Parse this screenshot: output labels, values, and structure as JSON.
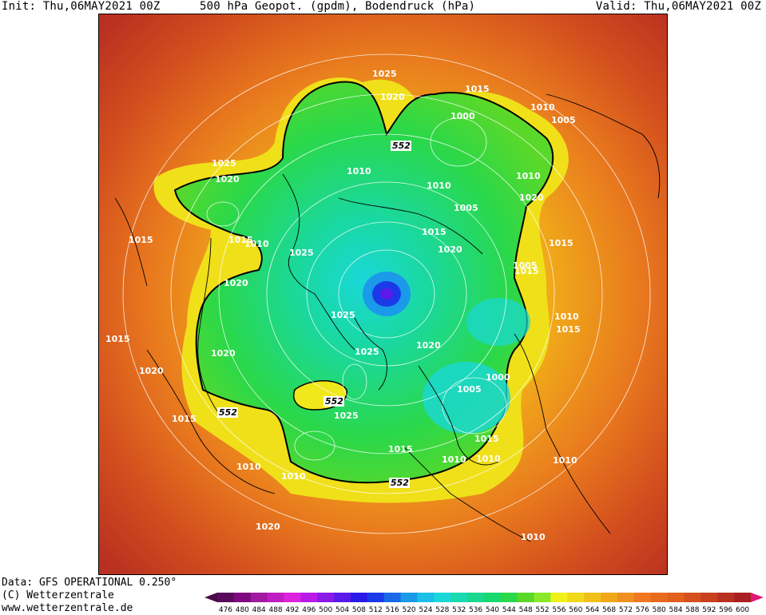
{
  "header": {
    "init": "Init: Thu,06MAY2021 00Z",
    "title": "500 hPa Geopot. (gpdm), Bodendruck (hPa)",
    "valid": "Valid: Thu,06MAY2021 00Z"
  },
  "footer": {
    "data_source": "Data: GFS OPERATIONAL 0.250°",
    "copyright": "(C) Wetterzentrale",
    "website": "www.wetterzentrale.de"
  },
  "legend": {
    "ticks": [
      "476",
      "480",
      "484",
      "488",
      "492",
      "496",
      "500",
      "504",
      "508",
      "512",
      "516",
      "520",
      "524",
      "528",
      "532",
      "536",
      "540",
      "544",
      "548",
      "552",
      "556",
      "560",
      "564",
      "568",
      "572",
      "576",
      "580",
      "584",
      "588",
      "592",
      "596",
      "600"
    ],
    "colors": [
      "#5a0a5a",
      "#7e0a7e",
      "#a01ba0",
      "#c01ec0",
      "#dd22dd",
      "#b81ae8",
      "#8a1ae8",
      "#5a1ae8",
      "#2a1ae8",
      "#1a3ae8",
      "#1a6ae8",
      "#1a9ae8",
      "#1ac0e8",
      "#1ad8d8",
      "#1ad8b0",
      "#1ad890",
      "#1ad870",
      "#2ad84a",
      "#5ad82a",
      "#8ae82a",
      "#f0f01a",
      "#f0d81a",
      "#f0c01a",
      "#f0a81a",
      "#f09020",
      "#f07820",
      "#e86a1e",
      "#e0601c",
      "#d4501e",
      "#c8401e",
      "#b83020",
      "#a82022",
      "#9a1022",
      "#e0187a"
    ],
    "arrow_left_color": "#4a0a4a",
    "arrow_right_color": "#e0187a"
  },
  "map": {
    "isobar_labels": [
      {
        "text": "1025"
      },
      {
        "text": "1020"
      },
      {
        "text": "1015"
      },
      {
        "text": "1010"
      },
      {
        "text": "1000"
      },
      {
        "text": "1005"
      },
      {
        "text": "1025"
      },
      {
        "text": "1020"
      },
      {
        "text": "1010"
      },
      {
        "text": "1010"
      },
      {
        "text": "1005"
      },
      {
        "text": "1010"
      },
      {
        "text": "1020"
      },
      {
        "text": "1015"
      },
      {
        "text": "1015"
      },
      {
        "text": "1020"
      },
      {
        "text": "1015"
      },
      {
        "text": "1025"
      },
      {
        "text": "1020"
      },
      {
        "text": "1015"
      },
      {
        "text": "1010"
      },
      {
        "text": "1015"
      },
      {
        "text": "1005"
      },
      {
        "text": "1025"
      },
      {
        "text": "1020"
      },
      {
        "text": "1025"
      },
      {
        "text": "1010"
      },
      {
        "text": "1015"
      },
      {
        "text": "1020"
      },
      {
        "text": "1015"
      },
      {
        "text": "1020"
      },
      {
        "text": "1000"
      },
      {
        "text": "1005"
      },
      {
        "text": "1025"
      },
      {
        "text": "1015"
      },
      {
        "text": "1015"
      },
      {
        "text": "1010"
      },
      {
        "text": "1010"
      },
      {
        "text": "1010"
      },
      {
        "text": "1010"
      },
      {
        "text": "1010"
      },
      {
        "text": "1015"
      },
      {
        "text": "1020"
      },
      {
        "text": "1010"
      }
    ],
    "contour_552_labels": [
      "552",
      "552",
      "552",
      "552"
    ]
  }
}
